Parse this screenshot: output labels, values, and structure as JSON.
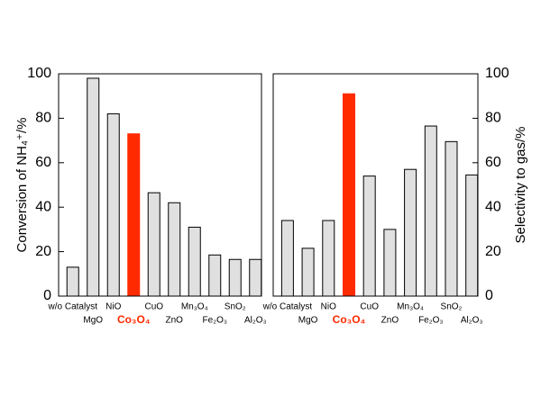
{
  "chart_data": [
    {
      "type": "bar",
      "ylabel": "Conversion of NH₄⁺/%",
      "categories": [
        "w/o Catalyst",
        "MgO",
        "NiO",
        "Co₃O₄",
        "CuO",
        "ZnO",
        "Mn₃O₄",
        "Fe₂O₃",
        "SnO₂",
        "Al₂O₃"
      ],
      "values": [
        13,
        98,
        82,
        73,
        46.5,
        42,
        31,
        18.5,
        16.5,
        16.5
      ],
      "colors": [
        "#e0e0e0",
        "#e0e0e0",
        "#e0e0e0",
        "#ff2a00",
        "#e0e0e0",
        "#e0e0e0",
        "#e0e0e0",
        "#e0e0e0",
        "#e0e0e0",
        "#e0e0e0"
      ],
      "ylim": [
        0,
        100
      ],
      "yticks": [
        0,
        20,
        40,
        60,
        80,
        100
      ],
      "axis_side": "left"
    },
    {
      "type": "bar",
      "ylabel": "Selectivity to gas/%",
      "categories": [
        "w/o Catalyst",
        "MgO",
        "NiO",
        "Co₃O₄",
        "CuO",
        "ZnO",
        "Mn₃O₄",
        "Fe₂O₃",
        "SnO₂",
        "Al₂O₃"
      ],
      "values": [
        34,
        21.5,
        34,
        91,
        54,
        30,
        57,
        76.5,
        69.5,
        54.5
      ],
      "colors": [
        "#e0e0e0",
        "#e0e0e0",
        "#e0e0e0",
        "#ff2a00",
        "#e0e0e0",
        "#e0e0e0",
        "#e0e0e0",
        "#e0e0e0",
        "#e0e0e0",
        "#e0e0e0"
      ],
      "ylim": [
        0,
        100
      ],
      "yticks": [
        0,
        20,
        40,
        60,
        80,
        100
      ],
      "axis_side": "right"
    }
  ]
}
